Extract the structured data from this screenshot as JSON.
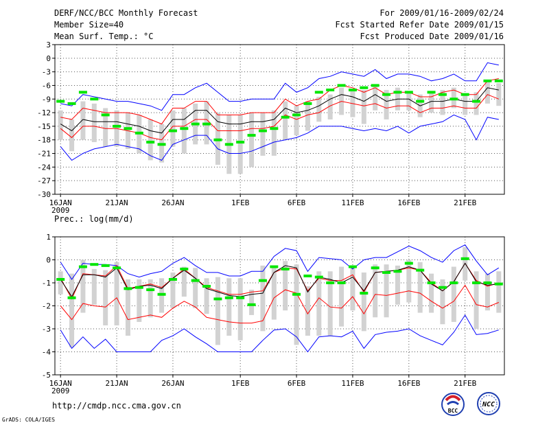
{
  "header": {
    "title": "DERF/NCC/BCC Monthly Forecast",
    "member_size": "Member Size=40",
    "variable": "Mean Surf. Temp.: °C",
    "period": "For 2009/01/16-2009/02/24",
    "started": "Fcst Started Refer Date 2009/01/15",
    "produced": "Fcst Produced Date 2009/01/16"
  },
  "colors": {
    "envelope": "#0000ff",
    "spread": "#ff0000",
    "mean": "#000000",
    "observed": "#00e600",
    "box": "#d2d2d2",
    "grid": "#555555"
  },
  "x_tick_labels": [
    "16JAN",
    "21JAN",
    "26JAN",
    "1FEB",
    "6FEB",
    "11FEB",
    "16FEB",
    "21FEB"
  ],
  "x_tick_days": [
    0,
    5,
    10,
    16,
    21,
    26,
    31,
    36
  ],
  "year_label": "2009",
  "footer": {
    "url": "http://cmdp.ncc.cma.gov.cn",
    "credit": "GrADS: COLA/IGES",
    "logo_bcc": "BCC",
    "logo_ncc": "NCC"
  },
  "chart_data": [
    {
      "type": "line",
      "title": "Mean Surf. Temp.: °C",
      "ylim": [
        -30,
        3
      ],
      "yticks": [
        3,
        0,
        -3,
        -6,
        -9,
        -12,
        -15,
        -18,
        -21,
        -24,
        -27,
        -30
      ],
      "x": [
        0,
        1,
        2,
        3,
        4,
        5,
        6,
        7,
        8,
        9,
        10,
        11,
        12,
        13,
        14,
        15,
        16,
        17,
        18,
        19,
        20,
        21,
        22,
        23,
        24,
        25,
        26,
        27,
        28,
        29,
        30,
        31,
        32,
        33,
        34,
        35,
        36,
        37,
        38,
        39
      ],
      "series": [
        {
          "name": "max",
          "values": [
            -10,
            -10.5,
            -8,
            -8.5,
            -9,
            -9.5,
            -9.5,
            -10,
            -10.5,
            -11.5,
            -8,
            -8,
            -6.5,
            -5.5,
            -7.5,
            -9.5,
            -9.5,
            -9,
            -9,
            -9,
            -5.5,
            -7.5,
            -6.5,
            -4.5,
            -4,
            -3,
            -3.5,
            -4,
            -2.5,
            -4.5,
            -3.5,
            -3.5,
            -4,
            -5,
            -4.5,
            -3.5,
            -5,
            -5,
            -1,
            -1.5
          ]
        },
        {
          "name": "upper",
          "values": [
            -13,
            -13.5,
            -11,
            -11.5,
            -12,
            -12,
            -12,
            -12.5,
            -13.5,
            -14.5,
            -11,
            -11,
            -9.5,
            -9.5,
            -12.5,
            -12.5,
            -12.5,
            -12,
            -12,
            -12,
            -9,
            -10.5,
            -9.5,
            -9,
            -7,
            -6,
            -6.5,
            -7.5,
            -6.5,
            -8,
            -7.5,
            -7.5,
            -8.5,
            -8.5,
            -7.5,
            -7,
            -8,
            -8,
            -5,
            -4.5
          ]
        },
        {
          "name": "mean",
          "values": [
            -14.5,
            -16,
            -13.5,
            -14,
            -14,
            -14,
            -14.5,
            -15,
            -16,
            -16.5,
            -13.5,
            -13.5,
            -11.5,
            -11.5,
            -14,
            -14.5,
            -14.5,
            -14,
            -14,
            -13.5,
            -11,
            -12,
            -11.5,
            -10.5,
            -9,
            -8,
            -8.5,
            -9.5,
            -8,
            -9.5,
            -9,
            -9,
            -10.5,
            -9.5,
            -9.5,
            -9,
            -9.5,
            -9.5,
            -6.5,
            -7
          ]
        },
        {
          "name": "lower",
          "values": [
            -15.5,
            -17.5,
            -15,
            -15,
            -15.5,
            -15.5,
            -16,
            -16.5,
            -17.5,
            -18,
            -15,
            -15,
            -13.5,
            -13.5,
            -16,
            -16,
            -16,
            -15.5,
            -15.5,
            -15,
            -12.5,
            -13.5,
            -12.5,
            -12,
            -10.5,
            -9.5,
            -10,
            -10.5,
            -10,
            -11,
            -10.5,
            -10.5,
            -12,
            -11,
            -11,
            -10.5,
            -11,
            -11,
            -8,
            -9
          ]
        },
        {
          "name": "min",
          "values": [
            -19.5,
            -22.5,
            -21,
            -20,
            -19.5,
            -19,
            -19.5,
            -20,
            -21.5,
            -22.5,
            -19,
            -18,
            -17,
            -17,
            -20,
            -21,
            -21,
            -20.5,
            -19.5,
            -18.5,
            -18,
            -17.5,
            -16.5,
            -15,
            -15,
            -15,
            -15.5,
            -16,
            -15.5,
            -16,
            -15,
            -16.5,
            -15,
            -14.5,
            -14,
            -12.5,
            -13.5,
            -18,
            -13,
            -13.5
          ]
        }
      ],
      "box_low": [
        -11.5,
        -13.5,
        -9.5,
        -10,
        -11,
        -11.5,
        -12,
        -12.5,
        -13.5,
        -14.5,
        -11.5,
        -11,
        -10,
        -9.5,
        -12,
        -12.5,
        -12.5,
        -12,
        -12,
        -11.5,
        -9.5,
        -10.5,
        -9.5,
        -8.5,
        -8,
        -6.5,
        -7,
        -7,
        -6,
        -7,
        -6.5,
        -7.5,
        -8,
        -7.5,
        -7,
        -6.5,
        -8,
        -7.5,
        -5,
        -5.5
      ],
      "box_high": [
        -18,
        -20.5,
        -18,
        -18.5,
        -19.5,
        -19.5,
        -20,
        -21,
        -22.5,
        -23,
        -19.5,
        -21,
        -19,
        -19,
        -23.5,
        -25.5,
        -25.5,
        -24,
        -21.5,
        -21.5,
        -18,
        -17,
        -16,
        -14,
        -13.5,
        -12.5,
        -13,
        -14.5,
        -11.5,
        -13.5,
        -11.5,
        -11.5,
        -13,
        -12,
        -12.5,
        -11,
        -12.5,
        -12.5,
        -10,
        -10.5
      ],
      "observed": [
        -9.5,
        -10,
        -7.5,
        -9,
        -12.5,
        -15,
        -15.5,
        -16.5,
        -18.5,
        -19,
        -16,
        -15.5,
        -14.5,
        -14.5,
        -18,
        -19,
        -18.5,
        -17,
        -16,
        -15.5,
        -13,
        -12.5,
        -10,
        -7.5,
        -7,
        -6,
        -7,
        -6.5,
        -6,
        -8,
        -7.5,
        -7.5,
        -9.5,
        -7.5,
        -8,
        -9,
        -8,
        -9.5,
        -5,
        -5
      ]
    },
    {
      "type": "line",
      "title": "Prec.: log(mm/d)",
      "ylim": [
        -5,
        1
      ],
      "yticks": [
        1,
        0,
        -1,
        -2,
        -3,
        -4,
        -5
      ],
      "x": [
        0,
        1,
        2,
        3,
        4,
        5,
        6,
        7,
        8,
        9,
        10,
        11,
        12,
        13,
        14,
        15,
        16,
        17,
        18,
        19,
        20,
        21,
        22,
        23,
        24,
        25,
        26,
        27,
        28,
        29,
        30,
        31,
        32,
        33,
        34,
        35,
        36,
        37,
        38,
        39
      ],
      "series": [
        {
          "name": "max",
          "values": [
            -0.1,
            -0.85,
            -0.15,
            -0.2,
            -0.2,
            -0.25,
            -0.6,
            -0.75,
            -0.6,
            -0.5,
            -0.15,
            0.1,
            -0.25,
            -0.55,
            -0.55,
            -0.7,
            -0.7,
            -0.5,
            -0.5,
            0.15,
            0.5,
            0.4,
            -0.5,
            0.1,
            0.05,
            0.0,
            -0.4,
            0.0,
            0.1,
            0.1,
            0.35,
            0.6,
            0.4,
            0.1,
            -0.1,
            0.4,
            0.65,
            -0.05,
            -0.65,
            -0.35
          ]
        },
        {
          "name": "upper",
          "values": [
            -0.8,
            -1.7,
            -0.6,
            -0.65,
            -0.7,
            -0.25,
            -1.25,
            -1.15,
            -1.05,
            -1.2,
            -0.8,
            -0.4,
            -0.8,
            -1.2,
            -1.35,
            -1.5,
            -1.5,
            -1.4,
            -1.35,
            -0.55,
            -0.35,
            -0.4,
            -1.35,
            -0.8,
            -0.9,
            -0.9,
            -0.65,
            -1.4,
            -0.55,
            -0.5,
            -0.45,
            -0.35,
            -0.45,
            -1.0,
            -1.35,
            -0.95,
            -0.15,
            -0.9,
            -1.15,
            -1.0
          ]
        },
        {
          "name": "mean",
          "values": [
            -0.85,
            -1.6,
            -0.65,
            -0.65,
            -0.75,
            -0.35,
            -1.3,
            -1.15,
            -1.1,
            -1.25,
            -0.8,
            -0.45,
            -0.8,
            -1.25,
            -1.4,
            -1.55,
            -1.6,
            -1.5,
            -1.45,
            -0.55,
            -0.25,
            -0.35,
            -1.4,
            -0.75,
            -0.85,
            -1.0,
            -0.75,
            -1.35,
            -0.55,
            -0.5,
            -0.45,
            -0.3,
            -0.45,
            -1.05,
            -1.35,
            -0.95,
            -0.15,
            -0.95,
            -1.1,
            -1.05
          ]
        },
        {
          "name": "lower",
          "values": [
            -2.0,
            -2.6,
            -1.9,
            -2.0,
            -2.05,
            -1.65,
            -2.6,
            -2.5,
            -2.4,
            -2.5,
            -2.1,
            -1.8,
            -2.05,
            -2.5,
            -2.6,
            -2.7,
            -2.75,
            -2.75,
            -2.65,
            -1.65,
            -1.3,
            -1.45,
            -2.35,
            -1.65,
            -2.05,
            -2.1,
            -1.6,
            -2.35,
            -1.5,
            -1.55,
            -1.45,
            -1.35,
            -1.45,
            -1.8,
            -2.1,
            -1.8,
            -1.1,
            -1.95,
            -2.05,
            -1.85
          ]
        },
        {
          "name": "min",
          "values": [
            -3.05,
            -3.85,
            -3.35,
            -3.85,
            -3.45,
            -4.0,
            -4.0,
            -4.0,
            -4.0,
            -3.5,
            -3.3,
            -3.0,
            -3.35,
            -3.65,
            -4.0,
            -4.0,
            -4.0,
            -4.0,
            -3.5,
            -3.05,
            -3.0,
            -3.35,
            -4.0,
            -3.35,
            -3.3,
            -3.35,
            -3.1,
            -3.85,
            -3.25,
            -3.15,
            -3.1,
            -3.0,
            -3.3,
            -3.5,
            -3.7,
            -3.15,
            -2.4,
            -3.25,
            -3.2,
            -3.05
          ]
        },
        {
          "name": "observed",
          "values": [
            -0.85,
            -1.65,
            -0.3,
            -0.2,
            -0.25,
            -0.35,
            -1.25,
            -1.2,
            -1.3,
            -1.5,
            -0.85,
            -0.4,
            -0.9,
            -1.15,
            -1.7,
            -1.65,
            -1.65,
            -1.95,
            -0.9,
            -0.3,
            -0.4,
            -1.5,
            -0.7,
            -0.75,
            -1.0,
            -1.0,
            -0.3,
            -1.45,
            -0.35,
            -0.55,
            -0.5,
            -0.15,
            -0.45,
            -1.0,
            -1.2,
            -1.0,
            0.05,
            -1.0,
            -1.0,
            -1.05
          ]
        }
      ],
      "box_low": [
        -0.5,
        -0.6,
        0.0,
        -0.4,
        -0.45,
        -0.1,
        -0.85,
        -0.85,
        -0.85,
        -0.8,
        -0.55,
        -0.3,
        -0.35,
        -0.8,
        -0.75,
        -0.8,
        -0.8,
        -1.3,
        -0.25,
        -0.25,
        -0.05,
        -0.2,
        -1.15,
        -0.5,
        -0.5,
        -0.3,
        -0.3,
        -0.55,
        -0.2,
        -0.2,
        -0.25,
        0.0,
        -0.1,
        -0.6,
        -0.85,
        -0.3,
        0.55,
        -0.5,
        -0.6,
        -0.5
      ],
      "box_high": [
        -1.5,
        -3.8,
        -2.3,
        -1.95,
        -2.85,
        -2.85,
        -3.3,
        -2.7,
        -2.5,
        -2.3,
        -2.1,
        -1.6,
        -2.1,
        -2.35,
        -3.7,
        -3.3,
        -3.5,
        -2.4,
        -3.1,
        -2.6,
        -2.2,
        -3.7,
        -3.3,
        -3.3,
        -3.3,
        -2.9,
        -2.2,
        -3.1,
        -2.5,
        -2.5,
        -1.95,
        -1.85,
        -2.3,
        -2.3,
        -2.8,
        -2.7,
        -0.9,
        -3.0,
        -2.2,
        -2.3
      ]
    }
  ]
}
